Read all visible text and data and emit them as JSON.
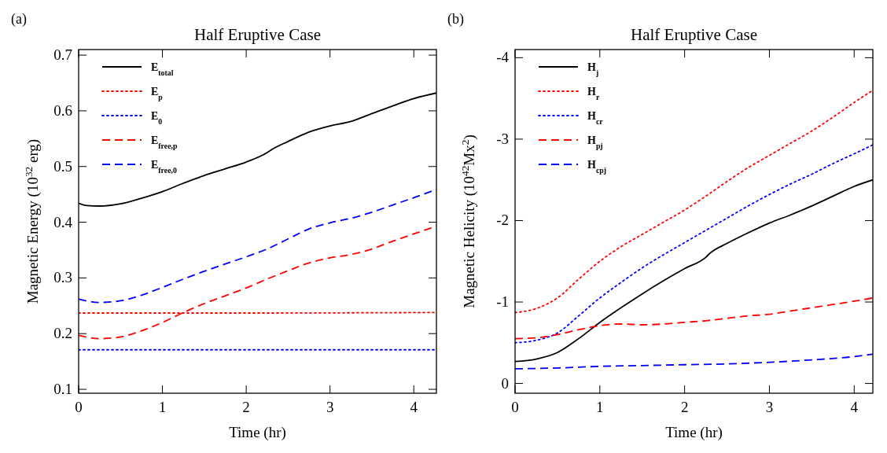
{
  "chart_data": [
    {
      "type": "line",
      "title": "Half Eruptive Case",
      "xlabel": "Time (hr)",
      "ylabel": "Magnetic Energy (10$^{32}$ erg)",
      "annotations": [
        "(a)"
      ],
      "xlim": [
        0,
        4.27
      ],
      "ylim": [
        0.093,
        0.71
      ],
      "xticks": [
        0,
        1,
        2,
        3,
        4
      ],
      "yticks": [
        {
          "value": 0.1,
          "label": "0.1"
        },
        {
          "value": 0.2,
          "label": "0.2"
        },
        {
          "value": 0.3,
          "label": "0.3"
        },
        {
          "value": 0.4,
          "label": "0.4"
        },
        {
          "value": 0.5,
          "label": "0.5"
        },
        {
          "value": 0.6,
          "label": "0.6"
        },
        {
          "value": 0.7,
          "label": "0.7"
        }
      ],
      "grid": false,
      "legend": "top left",
      "x": [
        0,
        0.1,
        0.25,
        0.5,
        0.75,
        1,
        1.25,
        1.5,
        1.75,
        2,
        2.25,
        2.3,
        2.5,
        2.75,
        3,
        3.25,
        3.5,
        3.75,
        4,
        4.27
      ],
      "series": [
        {
          "name": "E$_{total}$",
          "color": "#000000",
          "line_style": "solid",
          "values": [
            0.434,
            0.43,
            0.429,
            0.433,
            0.443,
            0.455,
            0.47,
            0.484,
            0.496,
            0.508,
            0.525,
            0.53,
            0.545,
            0.562,
            0.573,
            0.581,
            0.595,
            0.609,
            0.622,
            0.632
          ]
        },
        {
          "name": "E$_{p}$",
          "color": "#ff0000",
          "line_style": "dotted",
          "x": [
            0,
            2,
            4.27
          ],
          "values": [
            0.237,
            0.237,
            0.238
          ]
        },
        {
          "name": "E$_{0}$",
          "color": "#0000ff",
          "line_style": "dotted",
          "x": [
            0,
            2,
            4.27
          ],
          "values": [
            0.171,
            0.171,
            0.171
          ]
        },
        {
          "name": "E$_{free,p}$",
          "color": "#ff0000",
          "line_style": "dashed",
          "x": [
            0,
            0.25,
            0.5,
            0.75,
            1,
            1.25,
            1.5,
            1.75,
            2,
            2.25,
            2.5,
            2.75,
            3,
            3.25,
            3.5,
            3.75,
            4,
            4.27
          ],
          "values": [
            0.197,
            0.191,
            0.194,
            0.205,
            0.22,
            0.238,
            0.254,
            0.268,
            0.282,
            0.298,
            0.313,
            0.327,
            0.336,
            0.342,
            0.352,
            0.366,
            0.379,
            0.393
          ]
        },
        {
          "name": "E$_{free,0}$",
          "color": "#0000ff",
          "line_style": "dashed",
          "x": [
            0,
            0.25,
            0.5,
            0.75,
            1,
            1.25,
            1.5,
            1.75,
            2,
            2.25,
            2.5,
            2.75,
            3,
            3.25,
            3.5,
            3.75,
            4,
            4.27
          ],
          "values": [
            0.262,
            0.256,
            0.259,
            0.269,
            0.283,
            0.298,
            0.312,
            0.325,
            0.338,
            0.352,
            0.37,
            0.388,
            0.399,
            0.407,
            0.418,
            0.431,
            0.444,
            0.459
          ]
        }
      ]
    },
    {
      "type": "line",
      "title": "Half Eruptive Case",
      "xlabel": "Time (hr)",
      "ylabel": "Magnetic Helicity (10$^{42}$Mx$^{2}$)",
      "annotations": [
        "(b)"
      ],
      "xlim": [
        0,
        4.22
      ],
      "ylim": [
        0.12,
        -4.1
      ],
      "xticks": [
        0,
        1,
        2,
        3,
        4
      ],
      "yticks": [
        0,
        -1,
        -2,
        -3,
        -4
      ],
      "grid": false,
      "legend": "top left",
      "x": [
        0,
        0.25,
        0.5,
        0.75,
        1,
        1.25,
        1.5,
        1.75,
        2,
        2.25,
        2.5,
        2.75,
        3,
        3.25,
        3.5,
        3.75,
        4,
        4.22
      ],
      "series": [
        {
          "name": "H$_{j}$",
          "color": "#000000",
          "line_style": "solid",
          "x": [
            0,
            0.25,
            0.5,
            0.75,
            1,
            1.25,
            1.5,
            1.75,
            2,
            2.25,
            2.3,
            2.5,
            2.75,
            3,
            3.25,
            3.5,
            3.75,
            4,
            4.22
          ],
          "values": [
            -0.27,
            -0.3,
            -0.38,
            -0.55,
            -0.75,
            -0.93,
            -1.1,
            -1.26,
            -1.41,
            -1.55,
            -1.6,
            -1.72,
            -1.85,
            -1.97,
            -2.07,
            -2.18,
            -2.3,
            -2.42,
            -2.5
          ]
        },
        {
          "name": "H$_{r}$",
          "color": "#ff0000",
          "line_style": "dotted",
          "values": [
            -0.87,
            -0.92,
            -1.05,
            -1.28,
            -1.5,
            -1.68,
            -1.83,
            -1.98,
            -2.13,
            -2.3,
            -2.48,
            -2.65,
            -2.8,
            -2.95,
            -3.1,
            -3.27,
            -3.45,
            -3.6
          ]
        },
        {
          "name": "H$_{cr}$",
          "color": "#0000ff",
          "line_style": "dotted",
          "values": [
            -0.5,
            -0.53,
            -0.62,
            -0.83,
            -1.05,
            -1.24,
            -1.42,
            -1.58,
            -1.73,
            -1.88,
            -2.03,
            -2.18,
            -2.32,
            -2.45,
            -2.57,
            -2.7,
            -2.82,
            -2.93
          ]
        },
        {
          "name": "H$_{pj}$",
          "color": "#ff0000",
          "line_style": "dashed",
          "values": [
            -0.55,
            -0.56,
            -0.6,
            -0.66,
            -0.71,
            -0.73,
            -0.72,
            -0.73,
            -0.75,
            -0.77,
            -0.8,
            -0.83,
            -0.85,
            -0.89,
            -0.93,
            -0.97,
            -1.01,
            -1.05
          ]
        },
        {
          "name": "H$_{cpj}$",
          "color": "#0000ff",
          "line_style": "dashed",
          "x": [
            0,
            0.5,
            1,
            1.5,
            2,
            2.5,
            3,
            3.5,
            4,
            4.22
          ],
          "values": [
            -0.18,
            -0.19,
            -0.21,
            -0.22,
            -0.23,
            -0.24,
            -0.26,
            -0.29,
            -0.33,
            -0.36
          ]
        }
      ]
    }
  ]
}
